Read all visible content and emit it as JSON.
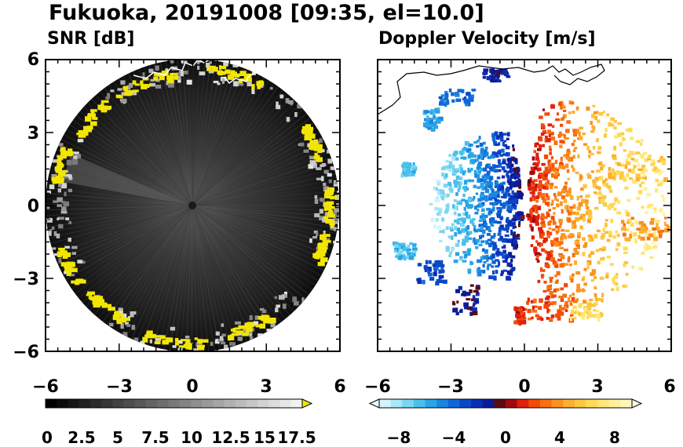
{
  "figure": {
    "title": "Fukuoka, 20191008 [09:35, el=10.0]"
  },
  "chart_data": [
    {
      "type": "heatmap",
      "title": "SNR [dB]",
      "x_ticks": [
        "−6",
        "−3",
        "0",
        "3",
        "6"
      ],
      "y_ticks": [
        "6",
        "3",
        "0",
        "−3",
        "−6"
      ],
      "xlim": [
        -6,
        6
      ],
      "ylim": [
        -6,
        6
      ],
      "max_range": 6,
      "colorbar": {
        "ticks": [
          "0",
          "2.5",
          "5",
          "7.5",
          "10",
          "12.5",
          "15",
          "17.5"
        ],
        "range": [
          0,
          19
        ],
        "extend": "max",
        "colors": [
          "#000000",
          "#0b0b0b",
          "#161616",
          "#212121",
          "#2c2c2c",
          "#373737",
          "#424242",
          "#4d4d4d",
          "#585858",
          "#636363",
          "#6e6e6e",
          "#797979",
          "#848484",
          "#8f8f8f",
          "#9a9a9a",
          "#a5a5a5",
          "#b0b0b0",
          "#bbbbbb",
          "#c6c6c6",
          "#d1d1d1",
          "#dcdcdc",
          "#e7e7e7",
          "#f2f2f2"
        ],
        "over_color": "#f2e600"
      },
      "high_snr_color": "#f2e600"
    },
    {
      "type": "heatmap",
      "title": "Doppler Velocity [m/s]",
      "x_ticks": [
        "−6",
        "−3",
        "0",
        "3",
        "6"
      ],
      "y_ticks": [
        "6",
        "3",
        "0",
        "−3",
        "−6"
      ],
      "xlim": [
        -6,
        6
      ],
      "ylim": [
        -6,
        6
      ],
      "colorbar": {
        "ticks": [
          "−8",
          "−4",
          "0",
          "4",
          "8"
        ],
        "range": [
          -10,
          10
        ],
        "extend": "both",
        "colors": [
          "#d4f4fb",
          "#a7e7f7",
          "#7ad6f2",
          "#4cc0ec",
          "#2aa4e6",
          "#1a86df",
          "#1066d6",
          "#0a48c8",
          "#0a2eb4",
          "#0c1a96",
          "#5a0a14",
          "#a00a10",
          "#e0200c",
          "#f24a08",
          "#f87010",
          "#fb9220",
          "#fcb030",
          "#fdc840",
          "#fedc58",
          "#ffe878",
          "#fff09a",
          "#fff6bc"
        ],
        "under_color": "#e6fbff",
        "over_color": "#fffbe0"
      },
      "radar_marker_color": "#ffffff"
    }
  ]
}
